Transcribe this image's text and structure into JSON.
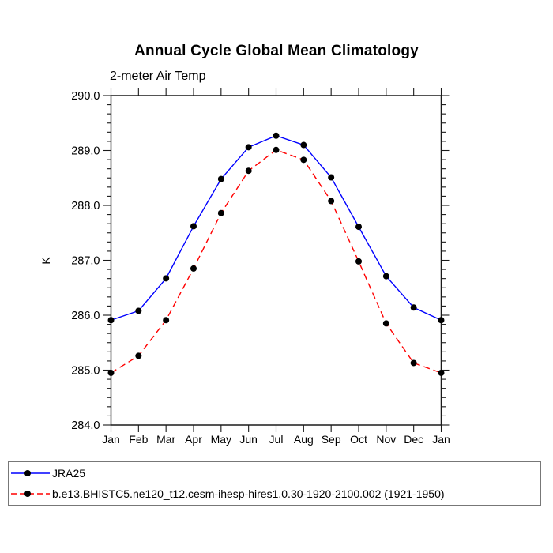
{
  "page": {
    "background": "#ffffff",
    "frame_color": "#1a1a1a"
  },
  "chart_data": {
    "type": "line",
    "title": "Annual Cycle Global Mean Climatology",
    "subtitle": "2-meter Air Temp",
    "ylabel": "K",
    "xlabel": "",
    "ylim": [
      284.0,
      290.0
    ],
    "y_major_step": 1.0,
    "y_minor_per_major": 5,
    "y_tick_labels": [
      "290.0",
      "289.0",
      "288.0",
      "287.0",
      "286.0",
      "285.0",
      "284.0"
    ],
    "categories": [
      "Jan",
      "Feb",
      "Mar",
      "Apr",
      "May",
      "Jun",
      "Jul",
      "Aug",
      "Sep",
      "Oct",
      "Nov",
      "Dec",
      "Jan"
    ],
    "grid": false,
    "legend_position": "bottom-left-box",
    "series": [
      {
        "name": "JRA25",
        "color": "#0000ff",
        "line_style": "solid",
        "marker": "circle",
        "marker_color": "#000000",
        "values": [
          285.91,
          286.08,
          286.67,
          287.62,
          288.48,
          289.06,
          289.27,
          289.1,
          288.51,
          287.61,
          286.71,
          286.14,
          285.91
        ]
      },
      {
        "name": "b.e13.BHISTC5.ne120_t12.cesm-ihesp-hires1.0.30-1920-2100.002 (1921-1950)",
        "color": "#ff0000",
        "line_style": "dashed",
        "marker": "circle",
        "marker_color": "#000000",
        "values": [
          284.95,
          285.26,
          285.91,
          286.85,
          287.86,
          288.63,
          289.01,
          288.83,
          288.08,
          286.98,
          285.85,
          285.13,
          284.95
        ]
      }
    ]
  }
}
